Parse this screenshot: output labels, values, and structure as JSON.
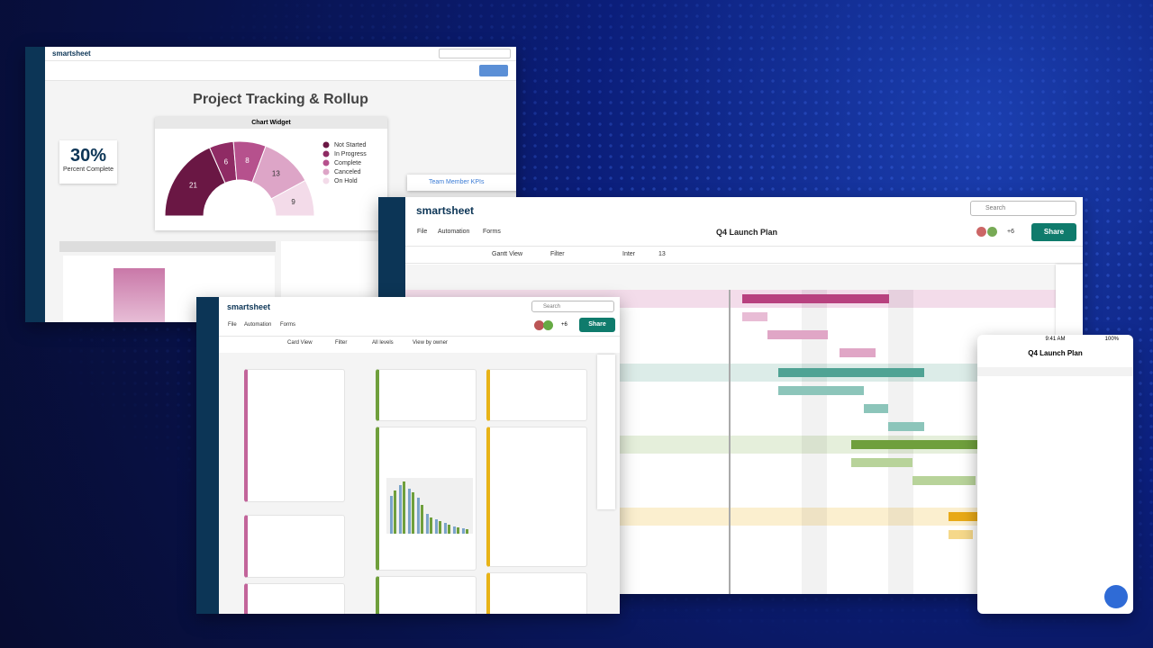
{
  "dashboard": {
    "brand": "smartsheet",
    "title": "Project Tracking & Rollup",
    "kpi": {
      "value": "30%",
      "label": "Percent Complete"
    },
    "widget": {
      "title": "Chart Widget",
      "chart": {
        "type": "pie",
        "categories": [
          "Not Started",
          "In Progress",
          "Complete",
          "Canceled",
          "On Hold"
        ],
        "values": [
          21,
          6,
          8,
          13,
          9
        ],
        "colors": [
          "#6a1744",
          "#8f2b64",
          "#b6518d",
          "#dda5c7",
          "#f3dbe9"
        ]
      }
    },
    "link": "Team Member KPIs"
  },
  "gantt_window": {
    "brand": "smartsheet",
    "search": "Search",
    "sheet_title": "Q4 Launch Plan",
    "menu": [
      "File",
      "Automation",
      "Forms"
    ],
    "collaborators": "+6",
    "share": "Share",
    "toolbar": {
      "view": "Gantt View",
      "filter": "Filter",
      "font": "Inter",
      "size": "13"
    }
  },
  "card_window": {
    "brand": "smartsheet",
    "search": "Search",
    "menu": [
      "File",
      "Automation",
      "Forms"
    ],
    "collaborators": "+6",
    "share": "Share",
    "toolbar": {
      "view": "Card View",
      "filter": "Filter",
      "levels": "All levels",
      "group": "View by owner"
    }
  },
  "mobile": {
    "time": "9:41 AM",
    "battery": "100%",
    "title": "Q4 Launch Plan"
  }
}
